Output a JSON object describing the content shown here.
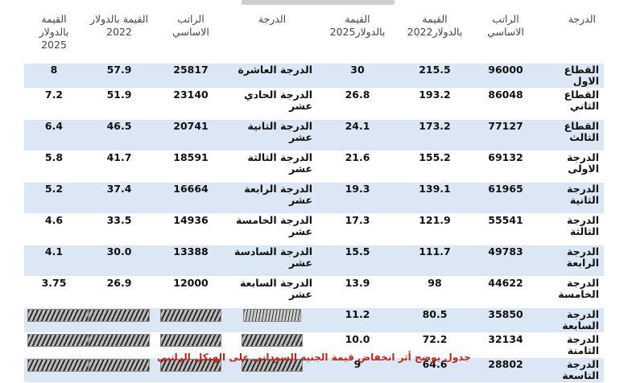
{
  "table": {
    "headers": [
      "القيمة\nبالدولار\n2025",
      "القيمة بالدولار\n2022",
      "الراتب\nالاساسي",
      "الدرجة",
      "القيمة\nبالدولار2025",
      "القيمة\nبالدولار2022",
      "الراتب\nالاساسي",
      "الدرجة"
    ],
    "rows": [
      {
        "r_grade": "القطاع الاول",
        "r_salary": "96000",
        "r_usd2022": "215.5",
        "r_usd2025": "30",
        "l_grade": "الدرجة العاشرة",
        "l_salary": "25817",
        "l_usd2022": "57.9",
        "l_usd2025": "8"
      },
      {
        "r_grade": "القطاع الثاني",
        "r_salary": "86048",
        "r_usd2022": "193.2",
        "r_usd2025": "26.8",
        "l_grade": "الدرجة الحادي عشر",
        "l_salary": "23140",
        "l_usd2022": "51.9",
        "l_usd2025": "7.2"
      },
      {
        "r_grade": "القطاع الثالث",
        "r_salary": "77127",
        "r_usd2022": "173.2",
        "r_usd2025": "24.1",
        "l_grade": "الدرجة الثانية عشر",
        "l_salary": "20741",
        "l_usd2022": "46.5",
        "l_usd2025": "6.4"
      },
      {
        "r_grade": "الدرجة الاولى",
        "r_salary": "69132",
        "r_usd2022": "155.2",
        "r_usd2025": "21.6",
        "l_grade": "الدرجة الثالثة عشر",
        "l_salary": "18591",
        "l_usd2022": "41.7",
        "l_usd2025": "5.8"
      },
      {
        "r_grade": "الدرجة الثانية",
        "r_salary": "61965",
        "r_usd2022": "139.1",
        "r_usd2025": "19.3",
        "l_grade": "الدرجة الرابعة عشر",
        "l_salary": "16664",
        "l_usd2022": "37.4",
        "l_usd2025": "5.2"
      },
      {
        "r_grade": "الدرجة الثالثة",
        "r_salary": "55541",
        "r_usd2022": "121.9",
        "r_usd2025": "17.3",
        "l_grade": "الدرجة الخامسة عشر",
        "l_salary": "14936",
        "l_usd2022": "33.5",
        "l_usd2025": "4.6"
      },
      {
        "r_grade": "الدرجة الرابعة",
        "r_salary": "49783",
        "r_usd2022": "111.7",
        "r_usd2025": "15.5",
        "l_grade": "الدرجة السادسة عشر",
        "l_salary": "13388",
        "l_usd2022": "30.0",
        "l_usd2025": "4.1"
      },
      {
        "r_grade": "الدرجة الخامسة",
        "r_salary": "44622",
        "r_usd2022": "98",
        "r_usd2025": "13.9",
        "l_grade": "الدرجة السابعة عشر",
        "l_salary": "12000",
        "l_usd2022": "26.9",
        "l_usd2025": "3.75"
      },
      {
        "r_grade": "الدرجة السابعة",
        "r_salary": "35850",
        "r_usd2022": "80.5",
        "r_usd2025": "11.2"
      },
      {
        "r_grade": "الدرجة الثامنة",
        "r_salary": "32134",
        "r_usd2022": "72.2",
        "r_usd2025": "10.0"
      },
      {
        "r_grade": "الدرجة التاسعة",
        "r_salary": "28802",
        "r_usd2022": "64.6",
        "r_usd2025": "9"
      }
    ]
  },
  "caption": "جدول يوضح أثر انخفاض قيمة الجنيه السوداني على الهيكل الراتبي",
  "colors": {
    "row_shade": "#dbe7f5",
    "caption": "#c0241b"
  }
}
